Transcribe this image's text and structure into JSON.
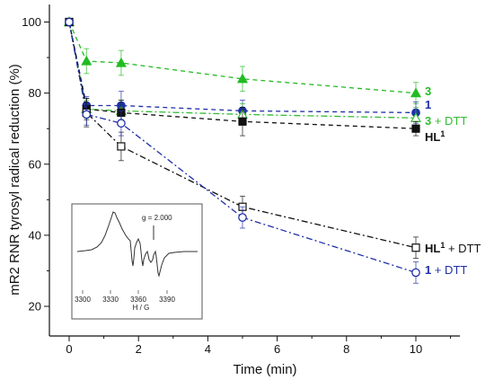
{
  "chart_data": {
    "type": "line",
    "xlabel": "Time (min)",
    "ylabel": "mR2 RNR tyrosyl radical reduction (%)",
    "xlim": [
      -0.3,
      11.3
    ],
    "ylim": [
      16,
      106
    ],
    "x_ticks": [
      "0",
      "2",
      "4",
      "6",
      "8",
      "10"
    ],
    "y_ticks": [
      "20",
      "40",
      "60",
      "80",
      "100"
    ],
    "series": [
      {
        "label": "3",
        "sup": "",
        "suffix": "",
        "color": "#22bb22",
        "line": "dash",
        "marker": "triangle-filled",
        "x": [
          0,
          0.5,
          1.5,
          5,
          10
        ],
        "y": [
          100,
          89,
          88.5,
          84,
          80
        ],
        "err": [
          0,
          3.5,
          3.5,
          3.5,
          3
        ]
      },
      {
        "label": "1",
        "sup": "",
        "suffix": "",
        "color": "#1f2fa8",
        "line": "dash",
        "marker": "circle-filled",
        "x": [
          0,
          0.5,
          1.5,
          5,
          10
        ],
        "y": [
          100,
          76.5,
          76.5,
          75,
          74.5
        ],
        "err": [
          0,
          2.5,
          4,
          3,
          3
        ]
      },
      {
        "label": "3",
        "sup": "",
        "suffix": " + DTT",
        "color": "#33bb33",
        "line": "dashdot",
        "marker": "triangle-open",
        "x": [
          0,
          0.5,
          1.5,
          5,
          10
        ],
        "y": [
          100,
          75.5,
          75,
          74,
          73
        ],
        "err": [
          0,
          2.5,
          3,
          3,
          3
        ]
      },
      {
        "label": "HL",
        "sup": "1",
        "suffix": "",
        "color": "#111111",
        "line": "dash",
        "marker": "square-filled",
        "x": [
          0,
          0.5,
          1.5,
          5,
          10
        ],
        "y": [
          100,
          75.5,
          74.5,
          72,
          70
        ],
        "err": [
          0,
          3,
          3.5,
          4,
          2
        ]
      },
      {
        "label": "HL",
        "sup": "1",
        "suffix": " + DTT",
        "color": "#111111",
        "line": "dashdot",
        "marker": "square-open",
        "x": [
          0,
          0.5,
          1.5,
          5,
          10
        ],
        "y": [
          100,
          74.5,
          65,
          48,
          36.5
        ],
        "err": [
          0,
          4,
          4,
          3,
          3
        ]
      },
      {
        "label": "1",
        "sup": "",
        "suffix": " + DTT",
        "color": "#1f2fa8",
        "line": "dashdot",
        "marker": "circle-open",
        "x": [
          0,
          0.5,
          1.5,
          5,
          10
        ],
        "y": [
          100,
          74,
          71.5,
          45,
          29.5
        ],
        "err": [
          0,
          3,
          3.5,
          3,
          3
        ]
      }
    ],
    "inset": {
      "xlabel": "H / G",
      "x_ticks": [
        "3300",
        "3330",
        "3360",
        "3390"
      ],
      "annotation": "g = 2.000"
    }
  }
}
